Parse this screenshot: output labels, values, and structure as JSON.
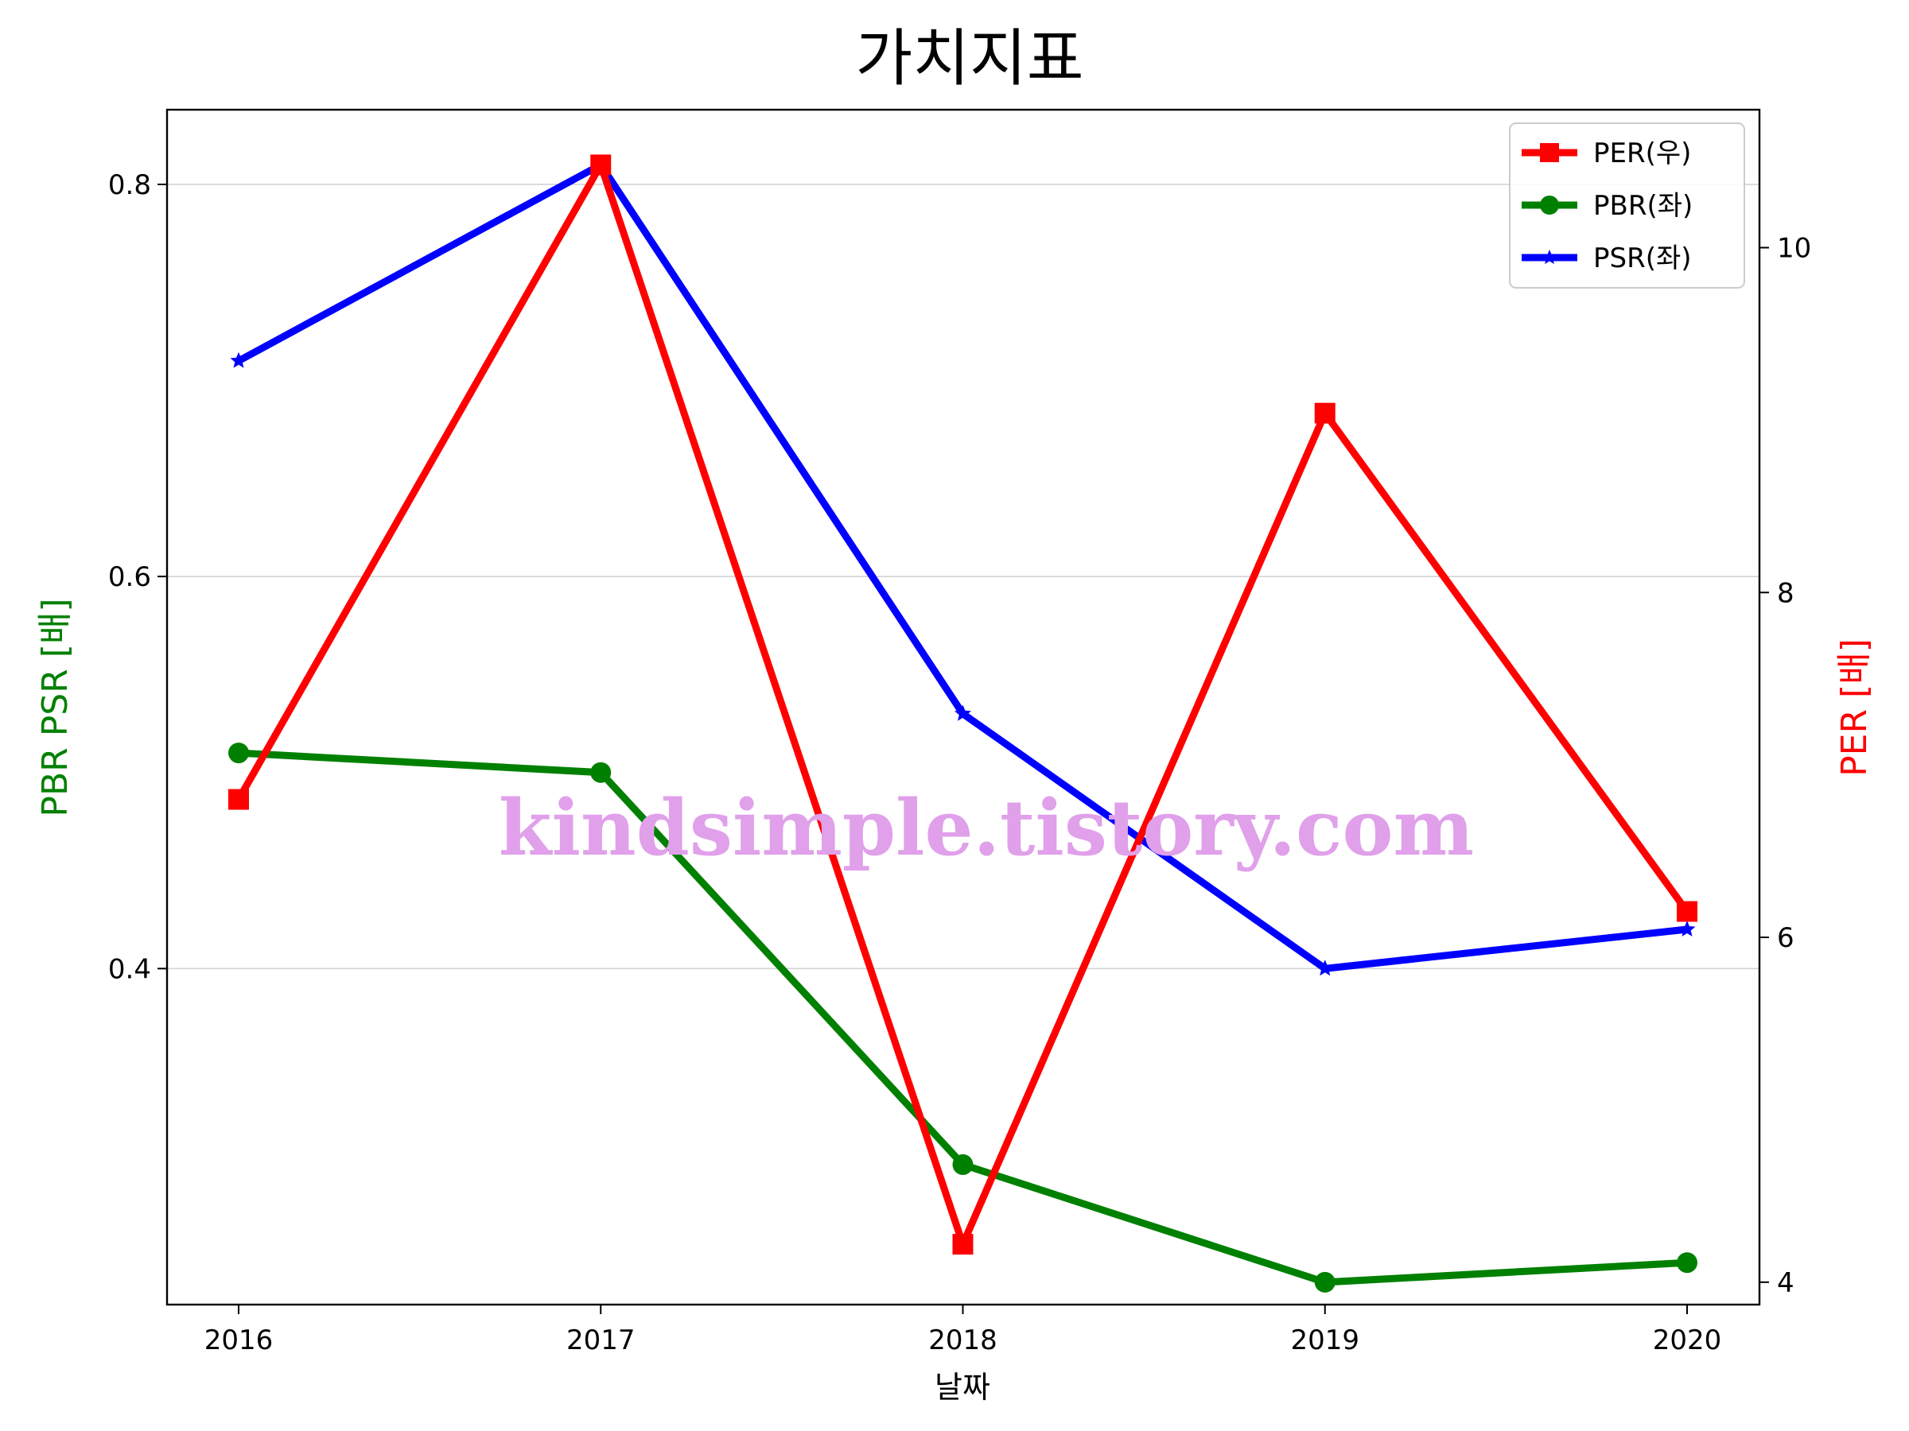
{
  "chart_data": {
    "type": "line",
    "title": "가치지표",
    "xlabel": "날짜",
    "ylabel_left": "PBR PSR [배]",
    "ylabel_right": "PER [배]",
    "categories": [
      "2016",
      "2017",
      "2018",
      "2019",
      "2020"
    ],
    "ylim_left": [
      0.2286,
      0.8381
    ],
    "ylim_right": [
      3.87,
      10.8
    ],
    "yticks_left": [
      "0.4",
      "0.6",
      "0.8"
    ],
    "yticks_right": [
      "4",
      "6",
      "8",
      "10"
    ],
    "grid": "horizontal",
    "legend_position": "top-right",
    "series": [
      {
        "name": "PER(우)",
        "axis": "right",
        "color": "#ff0000",
        "marker": "square",
        "values": [
          6.8,
          10.48,
          4.22,
          9.04,
          6.15
        ]
      },
      {
        "name": "PBR(좌)",
        "axis": "left",
        "color": "#008000",
        "marker": "circle",
        "values": [
          0.51,
          0.5,
          0.3,
          0.24,
          0.25
        ]
      },
      {
        "name": "PSR(좌)",
        "axis": "left",
        "color": "#0000ff",
        "marker": "star",
        "values": [
          0.71,
          0.81,
          0.53,
          0.4,
          0.42
        ]
      }
    ],
    "watermark": "kindsimple.tistory.com"
  }
}
